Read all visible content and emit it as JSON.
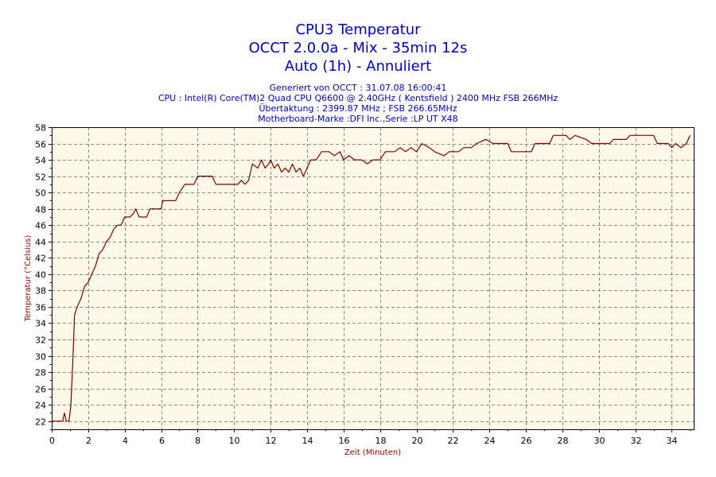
{
  "chart_data": {
    "type": "line",
    "title": [
      "CPU3 Temperatur",
      "OCCT 2.0.0a - Mix - 35min 12s",
      "Auto (1h) - Annuliert"
    ],
    "subtitle": [
      "Generiert von OCCT : 31.07.08 16:00:41",
      "CPU : Intel(R) Core(TM)2 Quad CPU Q6600 @ 2.40GHz ( Kentsfield ) 2400 MHz FSB 266MHz",
      "Übertaktung : 2399.87 MHz ; FSB 266.65MHz",
      "Motherboard-Marke :DFI Inc.,Serie :LP UT X48"
    ],
    "xlabel": "Zeit (Minuten)",
    "ylabel": "Temperatur (°Celsius)",
    "xlim": [
      0,
      35.2
    ],
    "ylim": [
      21,
      58
    ],
    "xticks": [
      0,
      2,
      4,
      6,
      8,
      10,
      12,
      14,
      16,
      18,
      20,
      22,
      24,
      26,
      28,
      30,
      32,
      34
    ],
    "yticks": [
      22,
      24,
      26,
      28,
      30,
      32,
      34,
      36,
      38,
      40,
      42,
      44,
      46,
      48,
      50,
      52,
      54,
      56,
      58
    ],
    "grid": true,
    "colors": {
      "line": "#800000",
      "plot_bg": "#fdf8e8",
      "grid": "#888888",
      "title": "#0000cc",
      "axis_label": "#990000"
    },
    "series": [
      {
        "values": [
          [
            0,
            22
          ],
          [
            0.6,
            22
          ],
          [
            0.7,
            23
          ],
          [
            0.8,
            22
          ],
          [
            0.95,
            22
          ],
          [
            1.05,
            24
          ],
          [
            1.15,
            29
          ],
          [
            1.25,
            35
          ],
          [
            1.4,
            36
          ],
          [
            1.6,
            37
          ],
          [
            1.8,
            38.5
          ],
          [
            2.0,
            39
          ],
          [
            2.2,
            40
          ],
          [
            2.4,
            41
          ],
          [
            2.6,
            42.5
          ],
          [
            2.8,
            43
          ],
          [
            3.0,
            44
          ],
          [
            3.2,
            44.5
          ],
          [
            3.4,
            45.5
          ],
          [
            3.6,
            46
          ],
          [
            3.8,
            46
          ],
          [
            4.0,
            47
          ],
          [
            4.3,
            47
          ],
          [
            4.5,
            47.5
          ],
          [
            4.6,
            48
          ],
          [
            4.8,
            47
          ],
          [
            5.2,
            47
          ],
          [
            5.4,
            48
          ],
          [
            6.0,
            48
          ],
          [
            6.1,
            49
          ],
          [
            6.8,
            49
          ],
          [
            7.0,
            50
          ],
          [
            7.3,
            51
          ],
          [
            7.8,
            51
          ],
          [
            8.0,
            52
          ],
          [
            8.8,
            52
          ],
          [
            9.0,
            51
          ],
          [
            10.2,
            51
          ],
          [
            10.4,
            51.5
          ],
          [
            10.6,
            51
          ],
          [
            10.8,
            51.5
          ],
          [
            11.0,
            53.5
          ],
          [
            11.3,
            53
          ],
          [
            11.5,
            54
          ],
          [
            11.7,
            53
          ],
          [
            11.9,
            53.5
          ],
          [
            12.0,
            54
          ],
          [
            12.2,
            53
          ],
          [
            12.4,
            53.5
          ],
          [
            12.6,
            52.5
          ],
          [
            12.8,
            53
          ],
          [
            13.0,
            52.5
          ],
          [
            13.2,
            53.5
          ],
          [
            13.4,
            52.5
          ],
          [
            13.6,
            53
          ],
          [
            13.8,
            52
          ],
          [
            14.0,
            53
          ],
          [
            14.2,
            54
          ],
          [
            14.5,
            54
          ],
          [
            14.8,
            55
          ],
          [
            15.2,
            55
          ],
          [
            15.5,
            54.5
          ],
          [
            15.8,
            55
          ],
          [
            16.0,
            54
          ],
          [
            16.3,
            54.5
          ],
          [
            16.6,
            54
          ],
          [
            17.0,
            54
          ],
          [
            17.3,
            53.5
          ],
          [
            17.6,
            54
          ],
          [
            18.0,
            54
          ],
          [
            18.3,
            55
          ],
          [
            18.8,
            55
          ],
          [
            19.1,
            55.5
          ],
          [
            19.4,
            55
          ],
          [
            19.7,
            55.5
          ],
          [
            20.0,
            55
          ],
          [
            20.3,
            56
          ],
          [
            20.7,
            55.5
          ],
          [
            21.0,
            55
          ],
          [
            21.5,
            54.5
          ],
          [
            21.8,
            55
          ],
          [
            22.3,
            55
          ],
          [
            22.6,
            55.5
          ],
          [
            23.0,
            55.5
          ],
          [
            23.3,
            56
          ],
          [
            23.8,
            56.5
          ],
          [
            24.2,
            56
          ],
          [
            25.0,
            56
          ],
          [
            25.2,
            55
          ],
          [
            26.3,
            55
          ],
          [
            26.5,
            56
          ],
          [
            27.3,
            56
          ],
          [
            27.5,
            57
          ],
          [
            28.2,
            57
          ],
          [
            28.4,
            56.5
          ],
          [
            28.7,
            57
          ],
          [
            29.3,
            56.5
          ],
          [
            29.6,
            56
          ],
          [
            30.6,
            56
          ],
          [
            30.8,
            56.5
          ],
          [
            31.5,
            56.5
          ],
          [
            31.7,
            57
          ],
          [
            33.0,
            57
          ],
          [
            33.2,
            56
          ],
          [
            33.8,
            56
          ],
          [
            34.0,
            55.5
          ],
          [
            34.2,
            56
          ],
          [
            34.5,
            55.5
          ],
          [
            34.8,
            56
          ],
          [
            35.0,
            57
          ]
        ]
      }
    ]
  }
}
